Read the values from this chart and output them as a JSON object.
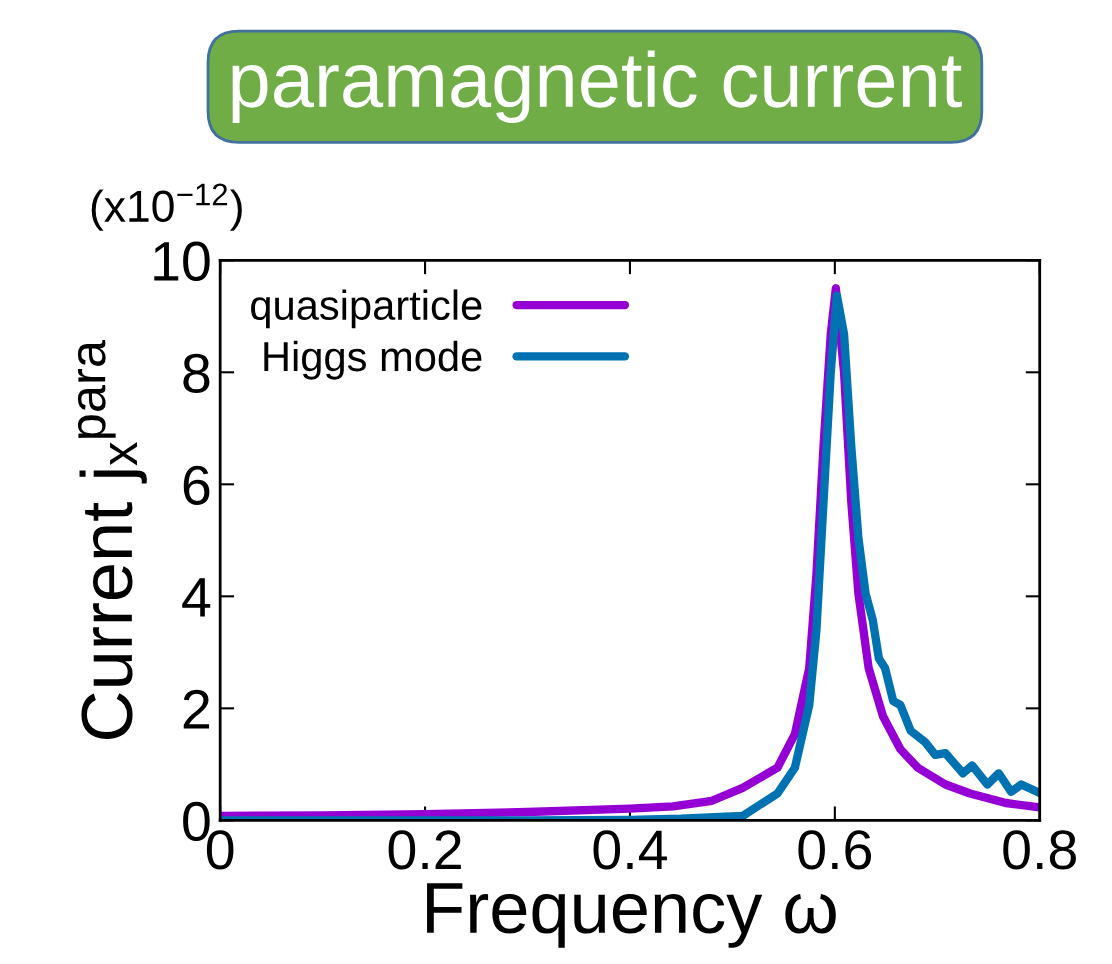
{
  "chart_data": {
    "type": "line",
    "title": "paramagnetic current",
    "xlabel": "Frequency ω",
    "ylabel": "Current jₓ$^{para}$",
    "annotations": [
      "(x10$^{−12}$)"
    ],
    "xlim": [
      0,
      0.8
    ],
    "xticks": [
      0,
      0.2,
      0.4,
      0.6,
      0.8
    ],
    "ylim": [
      0,
      10
    ],
    "yticks": [
      0,
      2,
      4,
      6,
      8,
      10
    ],
    "grid": false,
    "legend": "top left",
    "marker": "none",
    "line_style": "solid",
    "series": [
      {
        "name": "quasiparticle",
        "color": "#9400d3",
        "x": [
          0,
          0.1,
          0.2,
          0.3,
          0.4,
          0.442,
          0.48,
          0.51,
          0.544,
          0.561,
          0.575,
          0.582,
          0.589,
          0.596,
          0.601,
          0.609,
          0.616,
          0.623,
          0.633,
          0.647,
          0.664,
          0.681,
          0.708,
          0.732,
          0.767,
          0.8
        ],
        "values": [
          0.08,
          0.09,
          0.11,
          0.15,
          0.21,
          0.25,
          0.35,
          0.58,
          0.94,
          1.54,
          2.72,
          4.38,
          6.69,
          8.68,
          9.5,
          8.0,
          5.7,
          4.05,
          2.72,
          1.86,
          1.27,
          0.94,
          0.64,
          0.48,
          0.31,
          0.23
        ]
      },
      {
        "name": "Higgs mode",
        "color": "#0072b2",
        "x": [
          0,
          0.2,
          0.3,
          0.4,
          0.45,
          0.51,
          0.544,
          0.561,
          0.575,
          0.582,
          0.589,
          0.596,
          0.602,
          0.609,
          0.616,
          0.623,
          0.63,
          0.637,
          0.643,
          0.649,
          0.657,
          0.664,
          0.674,
          0.688,
          0.698,
          0.708,
          0.725,
          0.734,
          0.749,
          0.76,
          0.772,
          0.782,
          0.8
        ],
        "values": [
          0,
          0,
          0,
          0.01,
          0.03,
          0.08,
          0.48,
          0.94,
          2.06,
          3.39,
          5.7,
          8.0,
          9.37,
          8.68,
          6.69,
          5.04,
          4.05,
          3.58,
          2.89,
          2.72,
          2.13,
          2.06,
          1.6,
          1.4,
          1.17,
          1.2,
          0.84,
          0.98,
          0.64,
          0.84,
          0.51,
          0.64,
          0.49
        ]
      }
    ]
  }
}
